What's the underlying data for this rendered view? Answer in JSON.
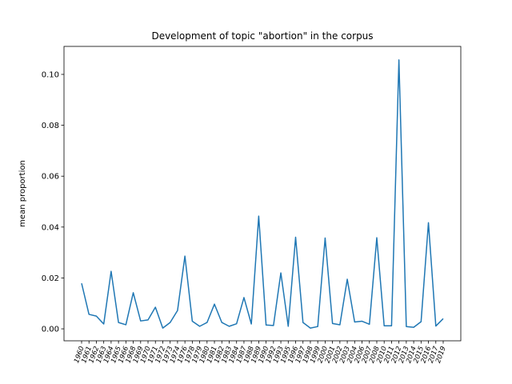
{
  "chart_data": {
    "type": "line",
    "title": "Development of topic \"abortion\" in the corpus",
    "y_label": "mean proportion",
    "categories": [
      "1960",
      "1961",
      "1962",
      "1963",
      "1964",
      "1965",
      "1966",
      "1968",
      "1969",
      "1970",
      "1971",
      "1972",
      "1973",
      "1974",
      "1976",
      "1978",
      "1979",
      "1980",
      "1981",
      "1982",
      "1983",
      "1984",
      "1987",
      "1988",
      "1989",
      "1990",
      "1992",
      "1993",
      "1995",
      "1996",
      "1997",
      "1998",
      "1999",
      "2000",
      "2001",
      "2002",
      "2003",
      "2004",
      "2006",
      "2007",
      "2008",
      "2010",
      "2011",
      "2012",
      "2013",
      "2014",
      "2015",
      "2016",
      "2017",
      "2019"
    ],
    "values": [
      0.0179,
      0.0057,
      0.005,
      0.0019,
      0.0226,
      0.0025,
      0.0016,
      0.0142,
      0.0031,
      0.0035,
      0.0085,
      0.0003,
      0.0025,
      0.0072,
      0.0286,
      0.003,
      0.001,
      0.0025,
      0.0097,
      0.0025,
      0.001,
      0.002,
      0.0123,
      0.0019,
      0.0443,
      0.0015,
      0.0013,
      0.022,
      0.001,
      0.036,
      0.0025,
      0.0003,
      0.0009,
      0.0357,
      0.0021,
      0.0016,
      0.0195,
      0.0027,
      0.003,
      0.0018,
      0.0358,
      0.0012,
      0.0012,
      0.1057,
      0.0009,
      0.0006,
      0.0028,
      0.0417,
      0.0011,
      0.004
    ],
    "color": "#1f77b4",
    "ylim": [
      -0.0047,
      0.111
    ],
    "yticks": [
      {
        "value": 0,
        "label": "0.00"
      },
      {
        "value": 0.02,
        "label": "0.02"
      },
      {
        "value": 0.04,
        "label": "0.04"
      },
      {
        "value": 0.06,
        "label": "0.06"
      },
      {
        "value": 0.08,
        "label": "0.08"
      },
      {
        "value": 0.1,
        "label": "0.10"
      }
    ]
  }
}
